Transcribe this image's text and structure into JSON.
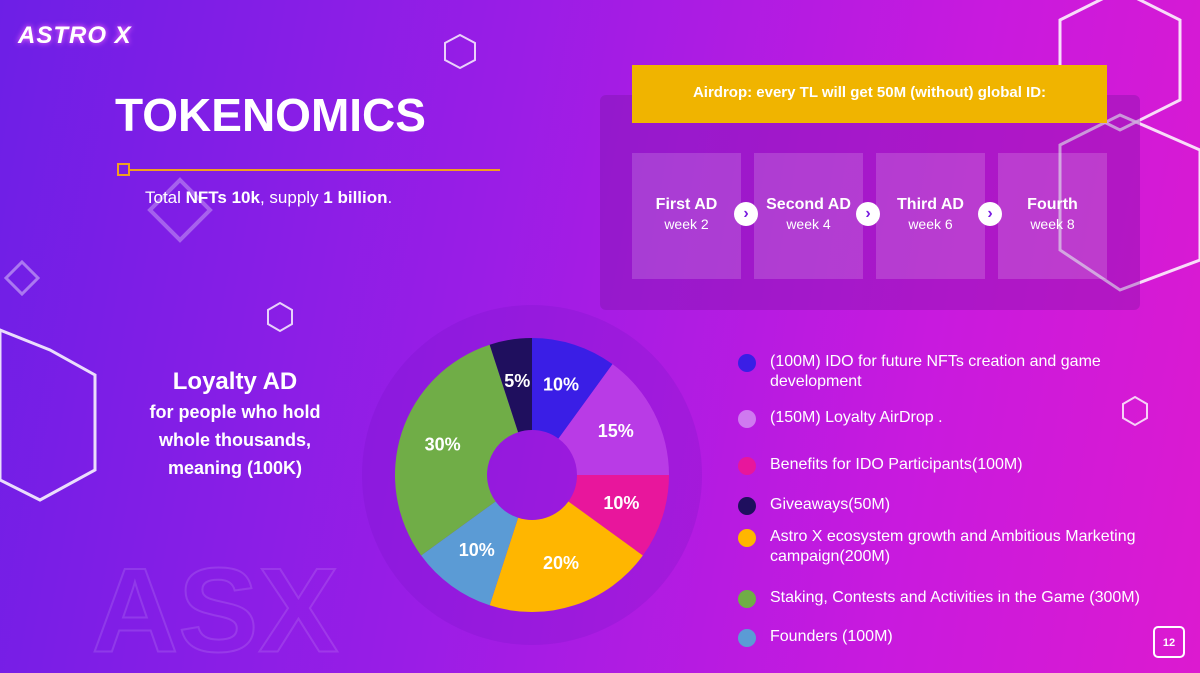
{
  "logo": "ASTRO X",
  "title": "TOKENOMICS",
  "subtitle": [
    "Total ",
    "NFTs 10k",
    ", supply ",
    "1 billion",
    "."
  ],
  "airdrop": {
    "banner": "Airdrop: every TL will get 50M (without) global ID:",
    "steps": [
      {
        "name": "First AD",
        "week": "week 2"
      },
      {
        "name": "Second AD",
        "week": "week 4"
      },
      {
        "name": "Third AD",
        "week": "week 6"
      },
      {
        "name": "Fourth",
        "week": "week 8"
      }
    ]
  },
  "loyalty": {
    "heading": "Loyalty AD",
    "lines": [
      "for people who hold",
      "whole thousands,",
      "meaning (100K)"
    ]
  },
  "watermark": "ASX",
  "page_number": "12",
  "chart_data": {
    "type": "donut",
    "categories": [
      "(100M) IDO for future NFTs creation and game development",
      "(150M) Loyalty AirDrop .",
      "Benefits for IDO Participants(100M)",
      "Astro X ecosystem growth and Ambitious Marketing campaign(200M)",
      "Founders (100M)",
      "Staking, Contests and Activities in the Game (300M)",
      "Giveaways(50M)"
    ],
    "values": [
      10,
      15,
      10,
      20,
      10,
      30,
      5
    ],
    "value_labels": [
      "10%",
      "15%",
      "10%",
      "20%",
      "10%",
      "30%",
      "5%"
    ],
    "colors": [
      "#3a1ee6",
      "#b93be6",
      "#e8169c",
      "#ffb600",
      "#5b9bd5",
      "#70ad47",
      "#1f0f5e"
    ],
    "legend_colors": [
      "#3a1ee6",
      "#cf7af0",
      "#e8169c",
      "#ffb600",
      "#5b9bd5",
      "#70ad47",
      "#1f0f5e"
    ]
  }
}
